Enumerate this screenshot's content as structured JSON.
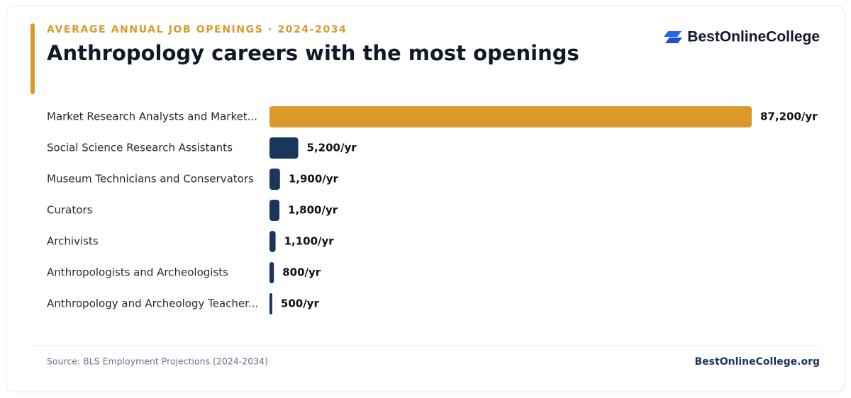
{
  "chart_data": {
    "type": "bar",
    "orientation": "horizontal",
    "subtitle": "AVERAGE ANNUAL JOB OPENINGS · 2024-2034",
    "title": "Anthropology careers with the most openings",
    "brand": "BestOnlineCollege",
    "categories": [
      "Market Research Analysts and Market...",
      "Social Science Research Assistants",
      "Museum Technicians and Conservators",
      "Curators",
      "Archivists",
      "Anthropologists and Archeologists",
      "Anthropology and Archeology Teacher..."
    ],
    "values": [
      87200,
      5200,
      1900,
      1800,
      1100,
      800,
      500
    ],
    "value_labels": [
      "87,200/yr",
      "5,200/yr",
      "1,900/yr",
      "1,800/yr",
      "1,100/yr",
      "800/yr",
      "500/yr"
    ],
    "colors": [
      "#D99A29",
      "#1B365D",
      "#1B365D",
      "#1B365D",
      "#1B365D",
      "#1B365D",
      "#1B365D"
    ],
    "source": "Source: BLS Employment Projections (2024-2034)",
    "footer_brand": "BestOnlineCollege.org"
  }
}
